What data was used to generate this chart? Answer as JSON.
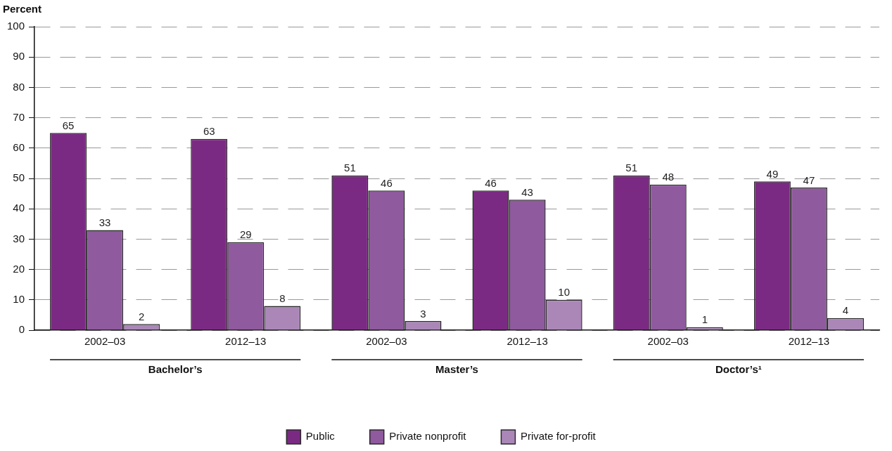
{
  "chart_data": {
    "type": "bar",
    "ylabel": "Percent",
    "categories": [
      "2002–03",
      "2012–13",
      "2002–03",
      "2012–13",
      "2002–03",
      "2012–13"
    ],
    "series": [
      {
        "name": "Public",
        "color": "#7b2a83",
        "values": [
          65,
          63,
          51,
          46,
          51,
          49
        ]
      },
      {
        "name": "Private nonprofit",
        "color": "#8f5a9e",
        "values": [
          33,
          29,
          46,
          43,
          48,
          47
        ]
      },
      {
        "name": "Private for-profit",
        "color": "#ab87b8",
        "values": [
          2,
          8,
          3,
          10,
          1,
          4
        ]
      }
    ],
    "annotations": [
      "Bachelor’s",
      "Master’s",
      "Doctor’s¹"
    ],
    "ylim": [
      0,
      100
    ],
    "yticks": [
      0,
      10,
      20,
      30,
      40,
      50,
      60,
      70,
      80,
      90,
      100
    ],
    "grid": "y",
    "legend": "bottom",
    "data_labels": true
  }
}
